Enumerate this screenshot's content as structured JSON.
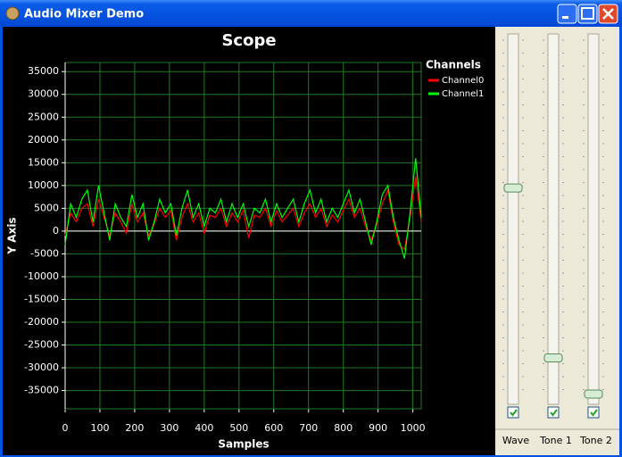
{
  "window": {
    "title": "Audio Mixer Demo"
  },
  "chart_data": {
    "type": "line",
    "title": "Scope",
    "x_label": "Samples",
    "y_label": "Y Axis",
    "legend_title": "Channels",
    "x": [
      0,
      16,
      32,
      48,
      64,
      80,
      96,
      112,
      128,
      144,
      160,
      176,
      192,
      208,
      224,
      240,
      256,
      272,
      288,
      304,
      320,
      336,
      352,
      368,
      384,
      400,
      416,
      432,
      448,
      464,
      480,
      496,
      512,
      528,
      544,
      560,
      576,
      592,
      608,
      624,
      640,
      656,
      672,
      688,
      704,
      720,
      736,
      752,
      768,
      784,
      800,
      816,
      832,
      848,
      864,
      880,
      896,
      912,
      928,
      944,
      960,
      976,
      992,
      1008,
      1024
    ],
    "series": [
      {
        "name": "Channel0",
        "color": "#ff0000",
        "values": [
          -1000,
          4000,
          2000,
          5000,
          6000,
          1000,
          7000,
          3000,
          -1000,
          4000,
          2000,
          -500,
          6000,
          2000,
          4000,
          -1000,
          1500,
          5000,
          3000,
          4500,
          -2000,
          3000,
          6000,
          2000,
          4000,
          -500,
          3500,
          3000,
          5000,
          1000,
          4000,
          2000,
          4500,
          -1500,
          3500,
          3000,
          5000,
          1000,
          4500,
          2000,
          3500,
          5000,
          1000,
          4000,
          6000,
          3000,
          5000,
          1000,
          3500,
          2000,
          4500,
          7000,
          3000,
          5000,
          1000,
          -2000,
          1500,
          6000,
          9000,
          2000,
          -3000,
          -4000,
          3000,
          12000,
          2000
        ]
      },
      {
        "name": "Channel1",
        "color": "#00ff00",
        "values": [
          -3000,
          6000,
          3000,
          7000,
          9000,
          2000,
          10000,
          4000,
          -2000,
          6000,
          3000,
          1000,
          8000,
          3000,
          6000,
          -2000,
          2000,
          7000,
          4000,
          6000,
          -1000,
          5000,
          9000,
          3000,
          6000,
          1000,
          5000,
          4000,
          7000,
          2000,
          6000,
          3000,
          6000,
          1000,
          5000,
          4000,
          7000,
          2000,
          6000,
          3000,
          5000,
          7000,
          2000,
          6000,
          9000,
          4000,
          7000,
          2000,
          5000,
          3000,
          6000,
          9000,
          4000,
          7000,
          2000,
          -3000,
          2000,
          8000,
          10000,
          3000,
          -2000,
          -6000,
          4000,
          16000,
          3000
        ]
      }
    ],
    "xlim": [
      0,
      1024
    ],
    "ylim": [
      -39000,
      37000
    ],
    "xticks": [
      0,
      100,
      200,
      300,
      400,
      500,
      600,
      700,
      800,
      900,
      1000
    ],
    "yticks": [
      -35000,
      -30000,
      -25000,
      -20000,
      -15000,
      -10000,
      -5000,
      0,
      5000,
      10000,
      15000,
      20000,
      25000,
      30000,
      35000
    ],
    "grid": true,
    "grid_color": "#1e7a1e",
    "legend": "right"
  },
  "sliders": [
    {
      "label": "Wave",
      "value": 0.58,
      "checked": true
    },
    {
      "label": "Tone 1",
      "value": 0.11,
      "checked": true
    },
    {
      "label": "Tone 2",
      "value": 0.01,
      "checked": true
    }
  ]
}
